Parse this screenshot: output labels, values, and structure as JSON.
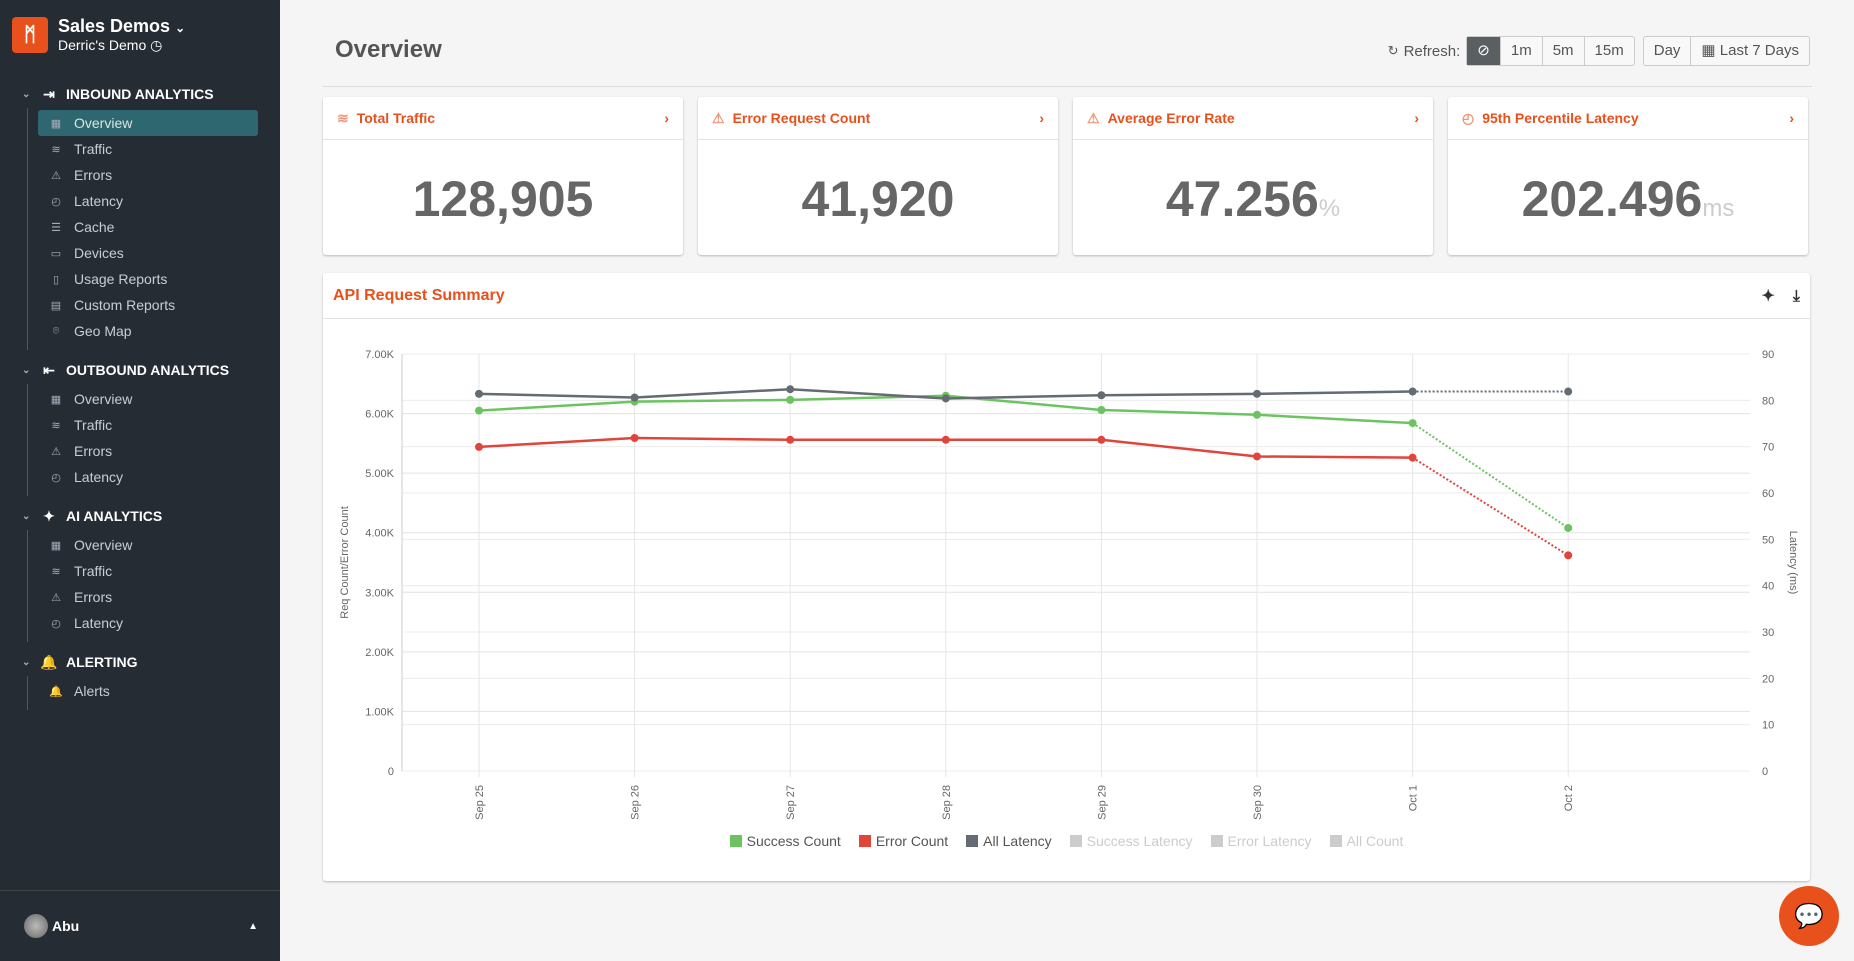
{
  "sidebar": {
    "org": "Sales Demos",
    "project": "Derric's Demo",
    "sections": [
      {
        "title": "INBOUND ANALYTICS",
        "items": [
          "Overview",
          "Traffic",
          "Errors",
          "Latency",
          "Cache",
          "Devices",
          "Usage Reports",
          "Custom Reports",
          "Geo Map"
        ]
      },
      {
        "title": "OUTBOUND ANALYTICS",
        "items": [
          "Overview",
          "Traffic",
          "Errors",
          "Latency"
        ]
      },
      {
        "title": "AI ANALYTICS",
        "items": [
          "Overview",
          "Traffic",
          "Errors",
          "Latency"
        ]
      },
      {
        "title": "ALERTING",
        "items": [
          "Alerts"
        ]
      }
    ],
    "active": "Overview",
    "user": "Abu"
  },
  "header": {
    "title": "Overview",
    "refresh_label": "Refresh:",
    "refresh_options": [
      "⊘",
      "1m",
      "5m",
      "15m"
    ],
    "refresh_selected": "⊘",
    "day": "Day",
    "range": "Last 7 Days"
  },
  "cards": [
    {
      "title": "Total Traffic",
      "value": "128,905",
      "unit": "",
      "icon": "traffic-icon"
    },
    {
      "title": "Error Request Count",
      "value": "41,920",
      "unit": "",
      "icon": "warning-icon"
    },
    {
      "title": "Average Error Rate",
      "value": "47.256",
      "unit": "%",
      "icon": "warning-icon"
    },
    {
      "title": "95th Percentile Latency",
      "value": "202.496",
      "unit": "ms",
      "icon": "latency-icon"
    }
  ],
  "chart_panel": {
    "title": "API Request Summary"
  },
  "chart_data": {
    "type": "line",
    "categories": [
      "Sep 25",
      "Sep 26",
      "Sep 27",
      "Sep 28",
      "Sep 29",
      "Sep 30",
      "Oct 1",
      "Oct 2"
    ],
    "ylabel": "Req Count/Error Count",
    "y2label": "Latency (ms)",
    "ylim": [
      0,
      7000
    ],
    "yticks": [
      "0",
      "1.00K",
      "2.00K",
      "3.00K",
      "4.00K",
      "5.00K",
      "6.00K",
      "7.00K"
    ],
    "y2lim": [
      0,
      90
    ],
    "y2ticks": [
      "0",
      "10",
      "20",
      "30",
      "40",
      "50",
      "60",
      "70",
      "80",
      "90"
    ],
    "grid": true,
    "legend": "bottom",
    "series": [
      {
        "name": "Success Count",
        "axis": "left",
        "color": "#6cc461",
        "visible": true,
        "values": [
          6050,
          6200,
          6230,
          6300,
          6060,
          5980,
          5840,
          4080
        ]
      },
      {
        "name": "Error Count",
        "axis": "left",
        "color": "#e0453b",
        "visible": true,
        "values": [
          5440,
          5590,
          5560,
          5560,
          5560,
          5280,
          5260,
          3620
        ]
      },
      {
        "name": "All Latency",
        "axis": "right",
        "color": "#646b72",
        "visible": true,
        "values": [
          81.4,
          80.6,
          82.4,
          80.4,
          81.1,
          81.4,
          81.9,
          81.9
        ]
      },
      {
        "name": "Success Latency",
        "visible": false,
        "color": "#cccccc"
      },
      {
        "name": "Error Latency",
        "visible": false,
        "color": "#cccccc"
      },
      {
        "name": "All Count",
        "visible": false,
        "color": "#cccccc"
      }
    ]
  }
}
